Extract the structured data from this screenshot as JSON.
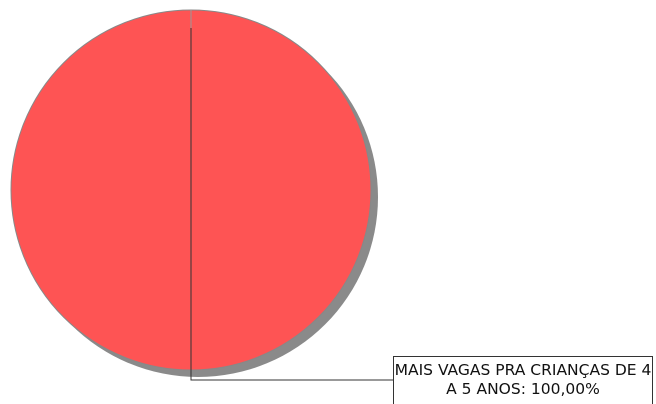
{
  "chart_data": {
    "type": "pie",
    "values": [
      100
    ],
    "value_labels": [
      "MAIS VAGAS PRA CRIANÇAS DE 4 A 5 ANOS: 100,00%"
    ],
    "colors": [
      "#fe5454"
    ]
  }
}
